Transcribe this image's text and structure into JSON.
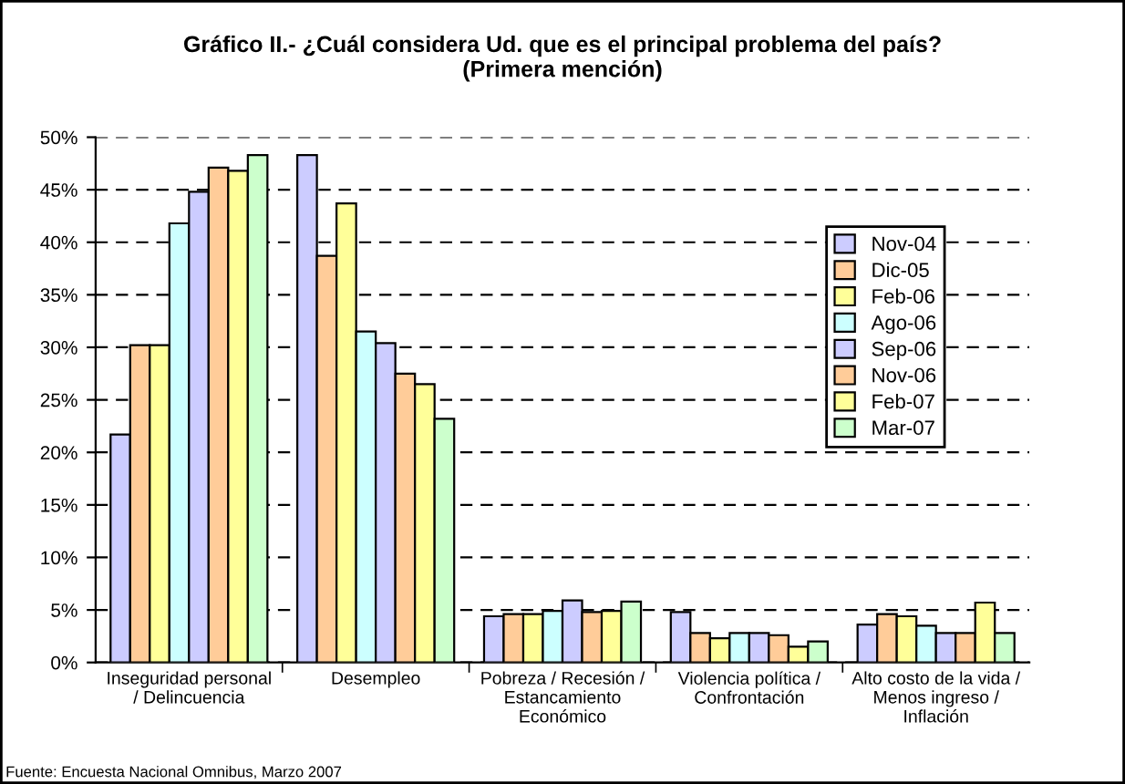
{
  "chart_data": {
    "type": "bar",
    "title": "Gráfico II.- ¿Cuál considera Ud. que es el principal problema del país?\n(Primera mención)",
    "categories": [
      "Inseguridad personal\n/ Delincuencia",
      "Desempleo",
      "Pobreza / Recesión /\nEstancamiento\nEconómico",
      "Violencia política /\nConfrontación",
      "Alto costo de la vida /\nMenos ingreso /\nInflación"
    ],
    "series": [
      {
        "name": "Nov-04",
        "color": "#ccccff",
        "values": [
          21.7,
          48.3,
          4.4,
          4.8,
          3.6
        ]
      },
      {
        "name": "Dic-05",
        "color": "#ffcc99",
        "values": [
          30.2,
          38.7,
          4.6,
          2.8,
          4.6
        ]
      },
      {
        "name": "Feb-06",
        "color": "#ffff99",
        "values": [
          30.2,
          43.7,
          4.6,
          2.3,
          4.4
        ]
      },
      {
        "name": "Ago-06",
        "color": "#ccffff",
        "values": [
          41.8,
          31.5,
          4.9,
          2.8,
          3.5
        ]
      },
      {
        "name": "Sep-06",
        "color": "#ccccff",
        "values": [
          44.8,
          30.4,
          5.9,
          2.8,
          2.8
        ]
      },
      {
        "name": "Nov-06",
        "color": "#ffcc99",
        "values": [
          47.1,
          27.5,
          4.8,
          2.6,
          2.8
        ]
      },
      {
        "name": "Feb-07",
        "color": "#ffff99",
        "values": [
          46.8,
          26.5,
          4.9,
          1.5,
          5.7
        ]
      },
      {
        "name": "Mar-07",
        "color": "#ccffcc",
        "values": [
          48.3,
          23.2,
          5.8,
          2.0,
          2.8
        ]
      }
    ],
    "ylim": [
      0,
      50
    ],
    "yticks": [
      {
        "value": 0,
        "label": "0%"
      },
      {
        "value": 5,
        "label": "5%"
      },
      {
        "value": 10,
        "label": "10%"
      },
      {
        "value": 15,
        "label": "15%"
      },
      {
        "value": 20,
        "label": "20%"
      },
      {
        "value": 25,
        "label": "25%"
      },
      {
        "value": 30,
        "label": "30%"
      },
      {
        "value": 35,
        "label": "35%"
      },
      {
        "value": 40,
        "label": "40%"
      },
      {
        "value": 45,
        "label": "45%"
      },
      {
        "value": 50,
        "label": "50%"
      }
    ],
    "grid": "y",
    "legend": "right",
    "annotations": [
      "Fuente: Encuesta Nacional Omnibus, Marzo 2007"
    ]
  }
}
